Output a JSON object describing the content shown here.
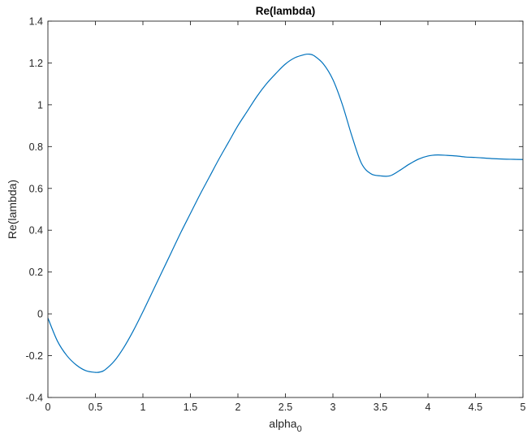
{
  "chart_data": {
    "type": "line",
    "title": "Re(lambda)",
    "xlabel": "alpha",
    "xlabel_subscript": "0",
    "ylabel": "Re(lambda)",
    "xlim": [
      0,
      5
    ],
    "ylim": [
      -0.4,
      1.4
    ],
    "xticks": [
      0,
      0.5,
      1,
      1.5,
      2,
      2.5,
      3,
      3.5,
      4,
      4.5,
      5
    ],
    "xtick_labels": [
      "0",
      "0.5",
      "1",
      "1.5",
      "2",
      "2.5",
      "3",
      "3.5",
      "4",
      "4.5",
      "5"
    ],
    "yticks": [
      -0.4,
      -0.2,
      0,
      0.2,
      0.4,
      0.6,
      0.8,
      1,
      1.2,
      1.4
    ],
    "ytick_labels": [
      "-0.4",
      "-0.2",
      "0",
      "0.2",
      "0.4",
      "0.6",
      "0.8",
      "1",
      "1.2",
      "1.4"
    ],
    "grid": false,
    "line_color": "#0072BD",
    "series": [
      {
        "x": [
          0,
          0.1,
          0.2,
          0.3,
          0.4,
          0.5,
          0.55,
          0.6,
          0.7,
          0.8,
          0.9,
          1.0,
          1.1,
          1.2,
          1.3,
          1.4,
          1.5,
          1.6,
          1.7,
          1.8,
          1.9,
          2.0,
          2.1,
          2.2,
          2.3,
          2.4,
          2.5,
          2.6,
          2.7,
          2.75,
          2.8,
          2.9,
          3.0,
          3.1,
          3.2,
          3.3,
          3.4,
          3.5,
          3.6,
          3.7,
          3.8,
          3.9,
          4.0,
          4.1,
          4.2,
          4.3,
          4.4,
          4.5,
          4.6,
          4.7,
          4.8,
          4.9,
          5.0
        ],
        "y": [
          -0.02,
          -0.13,
          -0.2,
          -0.245,
          -0.272,
          -0.28,
          -0.278,
          -0.268,
          -0.225,
          -0.16,
          -0.08,
          0.01,
          0.105,
          0.2,
          0.295,
          0.39,
          0.48,
          0.57,
          0.655,
          0.74,
          0.82,
          0.9,
          0.97,
          1.04,
          1.1,
          1.15,
          1.195,
          1.225,
          1.24,
          1.242,
          1.235,
          1.195,
          1.12,
          1.0,
          0.85,
          0.72,
          0.67,
          0.66,
          0.66,
          0.685,
          0.715,
          0.74,
          0.755,
          0.76,
          0.758,
          0.755,
          0.75,
          0.748,
          0.745,
          0.742,
          0.74,
          0.739,
          0.738
        ]
      }
    ]
  }
}
